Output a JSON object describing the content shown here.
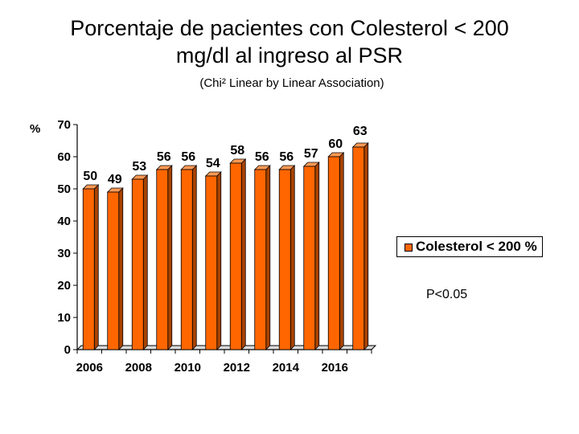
{
  "title_line1": "Porcentaje de pacientes con Colesterol < 200",
  "title_line2": "mg/dl al ingreso al PSR",
  "subtitle": "(Chi² Linear by Linear Association)",
  "note": "P<0.05",
  "chart_data": {
    "type": "bar",
    "title": "Porcentaje de pacientes con Colesterol < 200 mg/dl al ingreso al PSR",
    "subtitle": "(Chi² Linear by Linear Association)",
    "ylabel": "%",
    "xlabel": "",
    "ylim": [
      0,
      70
    ],
    "yticks": [
      0,
      10,
      20,
      30,
      40,
      50,
      60,
      70
    ],
    "categories": [
      "2006",
      "2007",
      "2008",
      "2009",
      "2010",
      "2011",
      "2012",
      "2013",
      "2014",
      "2015",
      "2016",
      "2017"
    ],
    "xtick_labels": [
      "2006",
      "2008",
      "2010",
      "2012",
      "2014",
      "2016"
    ],
    "series": [
      {
        "name": "Colesterol < 200 %",
        "values": [
          50,
          49,
          53,
          56,
          56,
          54,
          58,
          56,
          56,
          57,
          60,
          63
        ],
        "color": "#ff6600"
      }
    ],
    "legend_position": "right",
    "grid": false
  }
}
